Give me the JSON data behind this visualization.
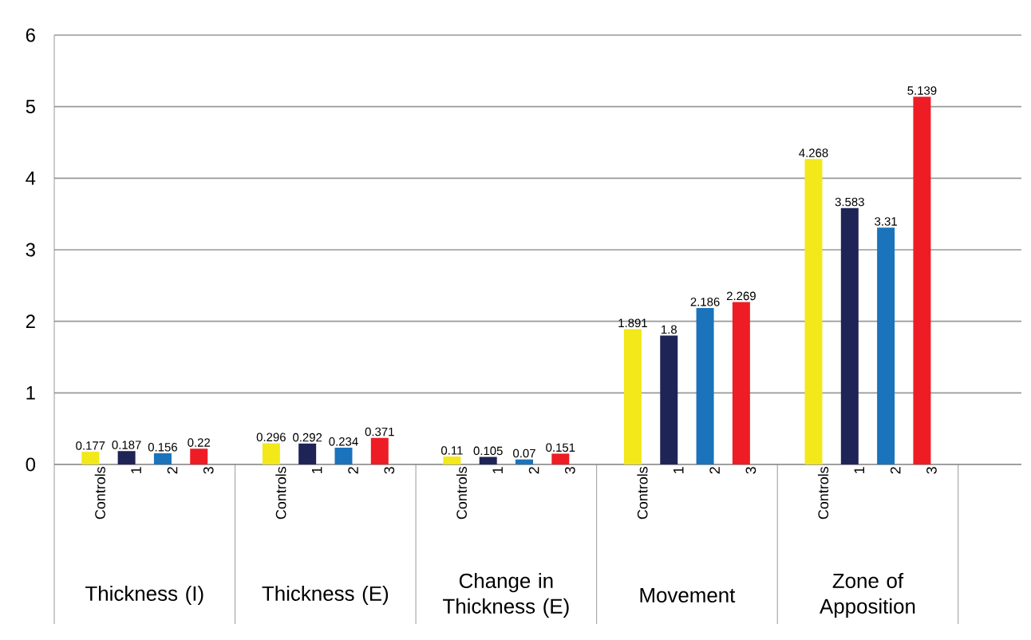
{
  "chart_data": {
    "type": "bar",
    "categories": [
      "Thickness (I)",
      "Thickness (E)",
      "Change in Thickness (E)",
      "Movement",
      "Zone of Apposition"
    ],
    "series": [
      {
        "name": "Controls",
        "color": "#f2e81a",
        "values": [
          0.177,
          0.296,
          0.11,
          1.891,
          4.268
        ]
      },
      {
        "name": "1",
        "color": "#1f2456",
        "values": [
          0.187,
          0.292,
          0.105,
          1.8,
          3.583
        ]
      },
      {
        "name": "2",
        "color": "#1a73bb",
        "values": [
          0.156,
          0.234,
          0.07,
          2.186,
          3.31
        ]
      },
      {
        "name": "3",
        "color": "#ee1c25",
        "values": [
          0.22,
          0.371,
          0.151,
          2.269,
          5.139
        ]
      }
    ],
    "ylim": [
      0,
      6
    ],
    "yticks": [
      0,
      1,
      2,
      3,
      4,
      5,
      6
    ],
    "grid": "y",
    "data_labels": true
  }
}
